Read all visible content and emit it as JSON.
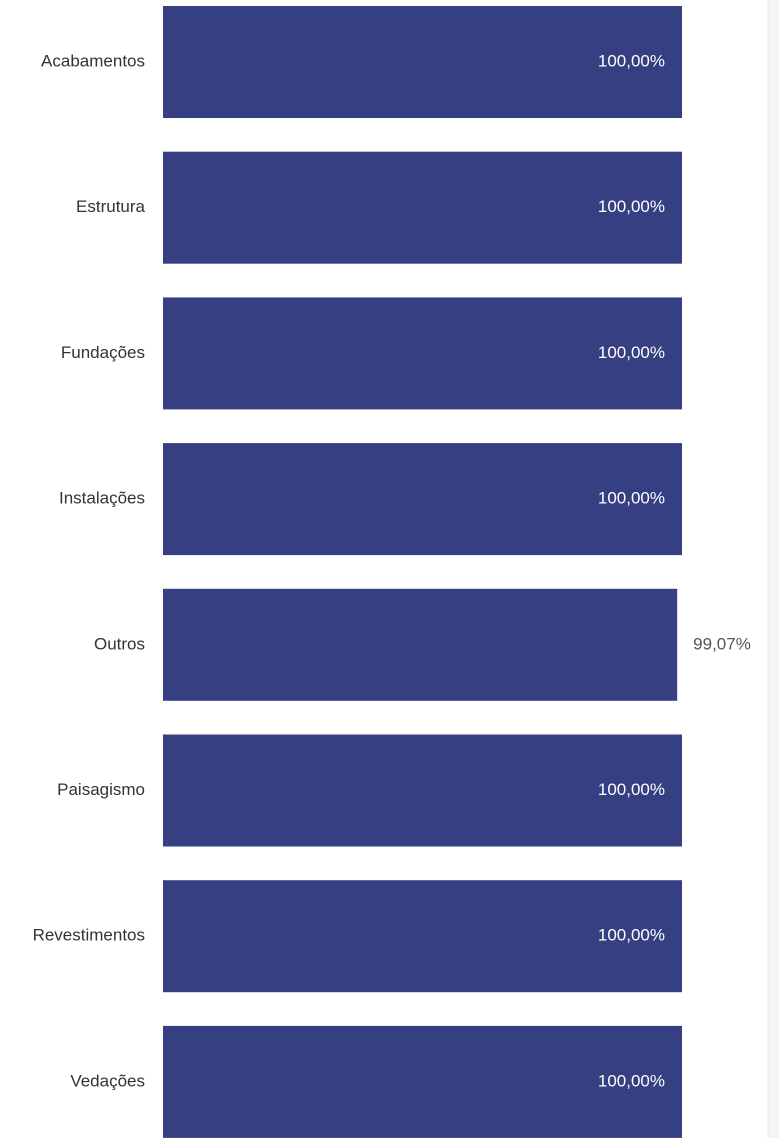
{
  "chart_data": {
    "type": "bar",
    "orientation": "horizontal",
    "categories": [
      "Acabamentos",
      "Estrutura",
      "Fundações",
      "Instalações",
      "Outros",
      "Paisagismo",
      "Revestimentos",
      "Vedações"
    ],
    "values": [
      100,
      100,
      100,
      100,
      99.07,
      100,
      100,
      100
    ],
    "value_labels": [
      "100,00%",
      "100,00%",
      "100,00%",
      "100,00%",
      "99,07%",
      "100,00%",
      "100,00%",
      "100,00%"
    ],
    "color": "#363f82",
    "xlim": [
      0,
      100
    ]
  }
}
